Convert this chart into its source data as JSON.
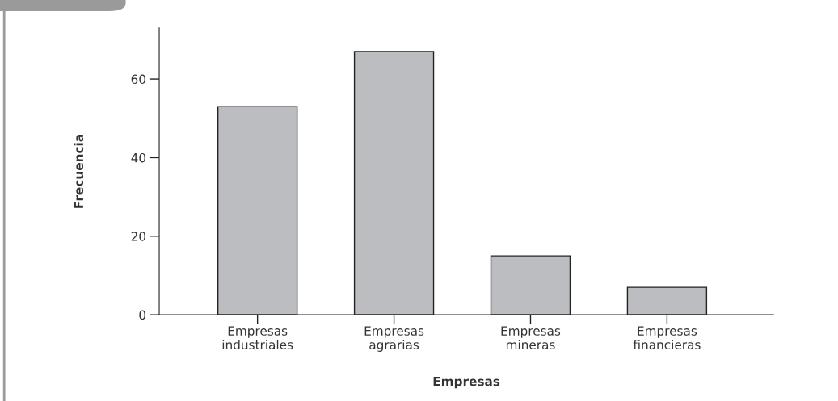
{
  "chart_data": {
    "type": "bar",
    "xlabel": "Empresas",
    "ylabel": "Frecuencia",
    "categories": [
      "Empresas\nindustriales",
      "Empresas\nagrarias",
      "Empresas\nmineras",
      "Empresas\nfinancieras"
    ],
    "values": [
      53,
      67,
      15,
      7
    ],
    "color": "#bcbdc0",
    "ylim": [
      0,
      73
    ],
    "yticks": [
      0,
      20,
      40,
      60
    ],
    "grid": false,
    "legend": false
  }
}
